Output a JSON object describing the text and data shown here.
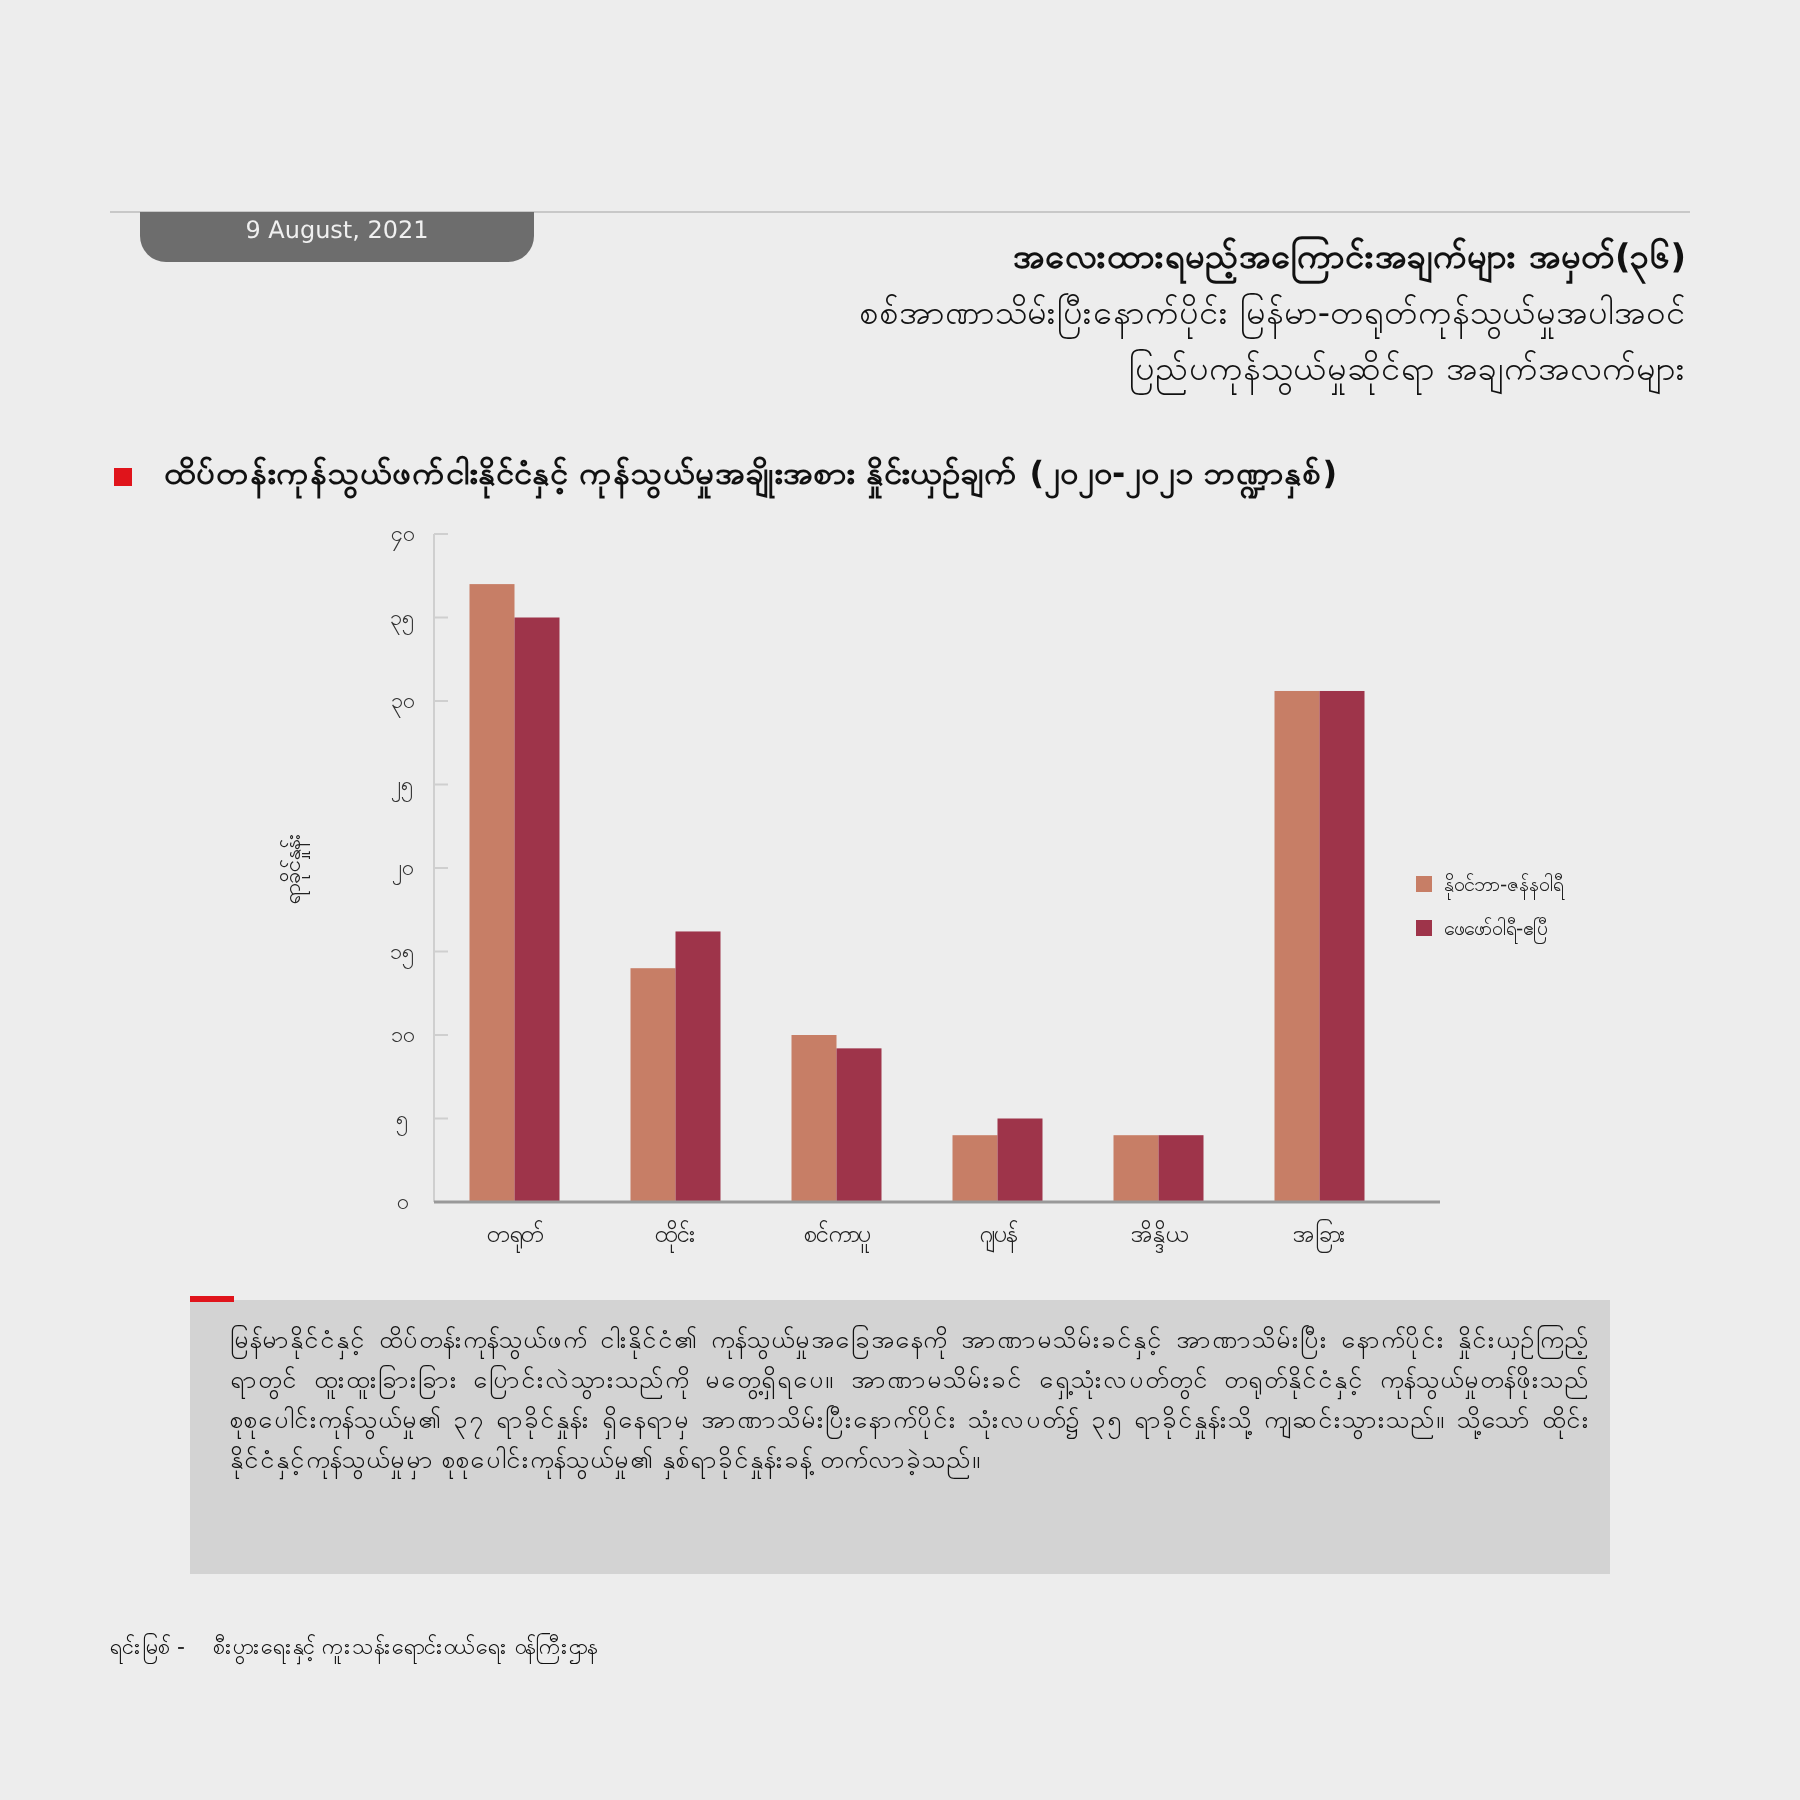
{
  "chart_data": {
    "type": "bar",
    "title": "ထိပ်တန်းကုန်သွယ်ဖက်ငါးနိုင်ငံနှင့် ကုန်သွယ်မှုအချိုးအစား နှိုင်းယှဉ်ချက် (၂၀၂၀-၂၀၂၁ ဘဏ္ဍာနှစ်)",
    "ylabel": "ရာခိုင်နှုန်း",
    "categories": [
      "တရုတ်",
      "ထိုင်း",
      "စင်ကာပူ",
      "ဂျပန်",
      "အိန္ဒိယ",
      "အခြား"
    ],
    "series": [
      {
        "name": "နိုဝင်ဘာ-ဇန်နဝါရီ",
        "color": "#c77e66",
        "values": [
          37,
          14,
          10,
          4,
          4,
          30.6
        ]
      },
      {
        "name": "ဖေဖော်ဝါရီ-ဧပြီ",
        "color": "#9e344a",
        "values": [
          35,
          16.2,
          9.2,
          5,
          4,
          30.6
        ]
      }
    ],
    "ylim": [
      0,
      40
    ],
    "yticks": [
      {
        "value": 0,
        "label": "၀"
      },
      {
        "value": 5,
        "label": "၅"
      },
      {
        "value": 10,
        "label": "၁၀"
      },
      {
        "value": 15,
        "label": "၁၅"
      },
      {
        "value": 20,
        "label": "၂၀"
      },
      {
        "value": 25,
        "label": "၂၅"
      },
      {
        "value": 30,
        "label": "၃၀"
      },
      {
        "value": 35,
        "label": "၃၅"
      },
      {
        "value": 40,
        "label": "၄၀"
      }
    ],
    "legend": "right",
    "annotations": [
      "9 August, 2021",
      "အလေးထားရမည့်အကြောင်းအချက်များ အမှတ်(၃၆)",
      "စစ်အာဏာသိမ်းပြီးနောက်ပိုင်း မြန်မာ-တရုတ်ကုန်သွယ်မှုအပါအဝင်",
      "ပြည်ပကုန်သွယ်မှုဆိုင်ရာ အချက်အလက်များ",
      "မြန်မာနိုင်ငံနှင့် ထိပ်တန်းကုန်သွယ်ဖက် ငါးနိုင်ငံ၏ ကုန်သွယ်မှုအခြေအနေကို အာဏာမသိမ်းခင်နှင့် အာဏာသိမ်းပြီး နောက်ပိုင်း နှိုင်းယှဉ်ကြည့်ရာတွင် ထူးထူးခြားခြား ပြောင်းလဲသွားသည်ကို မတွေ့ရှိရပေ။ အာဏာမသိမ်းခင် ရှေ့သုံးလပတ်တွင် တရုတ်နိုင်ငံနှင့် ကုန်သွယ်မှုတန်ဖိုးသည် စုစုပေါင်းကုန်သွယ်မှု၏ ၃၇ ရာခိုင်နှုန်း ရှိနေရာမှ အာဏာသိမ်းပြီးနောက်ပိုင်း သုံးလပတ်၌ ၃၅ ရာခိုင်နှုန်းသို့ ကျဆင်းသွားသည်။ သို့သော် ထိုင်းနိုင်ငံနှင့်ကုန်သွယ်မှုမှာ စုစုပေါင်းကုန်သွယ်မှု၏ နှစ်ရာခိုင်နှုန်းခန့် တက်လာခဲ့သည်။",
      "ရင်းမြစ် -    စီးပွားရေးနှင့် ကူးသန်းရောင်းဝယ်ရေး ဝန်ကြီးဌာန"
    ]
  }
}
